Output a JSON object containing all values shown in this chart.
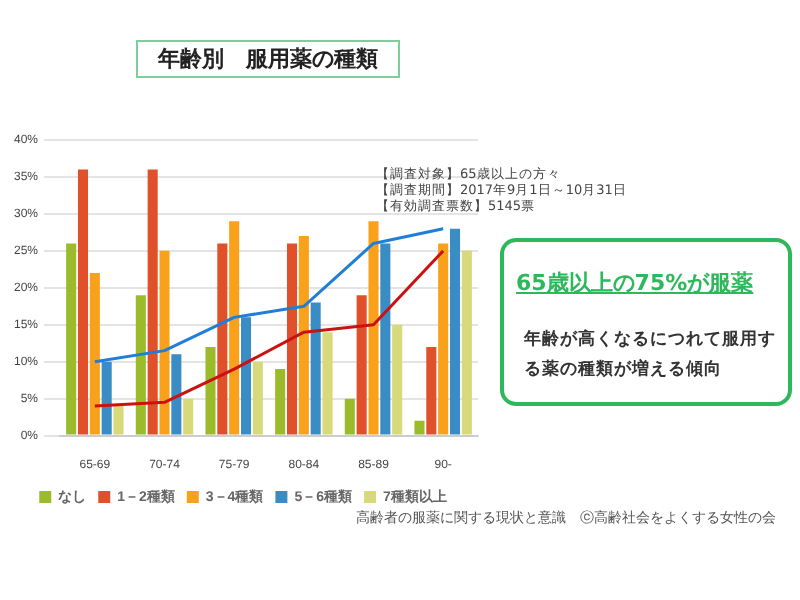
{
  "chart_data": {
    "type": "bar",
    "title": "年齢別　服用薬の種類",
    "categories": [
      "65-69",
      "70-74",
      "75-79",
      "80-84",
      "85-89",
      "90-"
    ],
    "series": [
      {
        "name": "なし",
        "color": "#9bbb2b",
        "values": [
          26,
          19,
          12,
          9,
          5,
          2
        ]
      },
      {
        "name": "1－2種類",
        "color": "#e0502a",
        "values": [
          36,
          36,
          26,
          26,
          19,
          12
        ]
      },
      {
        "name": "3－4種類",
        "color": "#f9a11b",
        "values": [
          22,
          25,
          29,
          27,
          29,
          26
        ]
      },
      {
        "name": "5－6種類",
        "color": "#3a8dc4",
        "values": [
          10,
          11,
          16,
          18,
          26,
          28
        ]
      },
      {
        "name": "7種類以上",
        "color": "#d8d97a",
        "values": [
          4,
          5,
          10,
          14,
          15,
          25
        ]
      },
      {
        "type": "line",
        "color": "#1f7fd8",
        "values": [
          10,
          11.5,
          16,
          17.5,
          26,
          28
        ]
      },
      {
        "type": "line",
        "color": "#cc1111",
        "values": [
          4,
          4.5,
          9,
          14,
          15,
          25
        ]
      }
    ],
    "ylim": [
      0,
      40
    ],
    "yticks": [
      {
        "value": 0,
        "label": "0%"
      },
      {
        "value": 5,
        "label": "5%"
      },
      {
        "value": 10,
        "label": "10%"
      },
      {
        "value": 15,
        "label": "15%"
      },
      {
        "value": 20,
        "label": "20%"
      },
      {
        "value": 25,
        "label": "25%"
      },
      {
        "value": 30,
        "label": "30%"
      },
      {
        "value": 35,
        "label": "35%"
      },
      {
        "value": 40,
        "label": "40%"
      }
    ],
    "grid": "y",
    "legend": "bottom",
    "annotations": [
      "【調査対象】65歳以上の方々",
      "【調査期間】2017年9月1日～10月31日",
      "【有効調査票数】5145票",
      "65歳以上の75%が服薬",
      "年齢が高くなるにつれて服用する薬の種類が増える傾向",
      "高齢者の服薬に関する現状と意識　ⓒ高齢社会をよくする女性の会"
    ]
  }
}
